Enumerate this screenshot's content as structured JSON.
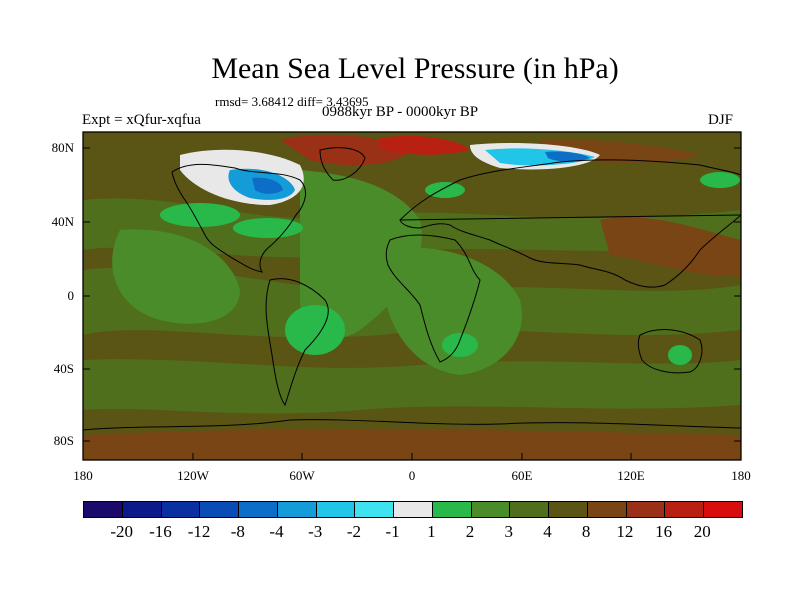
{
  "title": "Mean Sea Level Pressure (in hPa)",
  "stats": "rmsd= 3.68412 diff= 3.43695",
  "experiment": "Expt = xQfur-xqfua",
  "period": "0988kyr BP - 0000kyr BP",
  "season": "DJF",
  "lat_labels": [
    "80N",
    "40N",
    "0",
    "40S",
    "80S"
  ],
  "lon_labels": [
    "180",
    "120W",
    "60W",
    "0",
    "60E",
    "120E",
    "180"
  ],
  "colorbar": {
    "labels": [
      "-20",
      "-16",
      "-12",
      "-8",
      "-4",
      "-3",
      "-2",
      "-1",
      "1",
      "2",
      "3",
      "4",
      "8",
      "12",
      "16",
      "20"
    ],
    "colors": [
      "#1a0a6b",
      "#0d1b8a",
      "#0a2fa0",
      "#0a4cb5",
      "#0d6ec8",
      "#139cd8",
      "#21c5e8",
      "#3fe3ef",
      "#e8e8e8",
      "#29b94a",
      "#4a8c2a",
      "#4f6f1c",
      "#5a5415",
      "#7a4515",
      "#9a3015",
      "#b82012",
      "#d80e0e"
    ]
  },
  "field_colors": {
    "background": "#5a5415",
    "positive_2": "#29b94a",
    "positive_3": "#4a8c2a",
    "positive_4": "#4f6f1c",
    "positive_12": "#7a4515",
    "positive_16": "#9a3015",
    "negative_1": "#3fe3ef",
    "negative_2": "#21c5e8",
    "negative_3": "#139cd8",
    "negative_4": "#0d6ec8",
    "neutral": "#e8e8e8"
  }
}
